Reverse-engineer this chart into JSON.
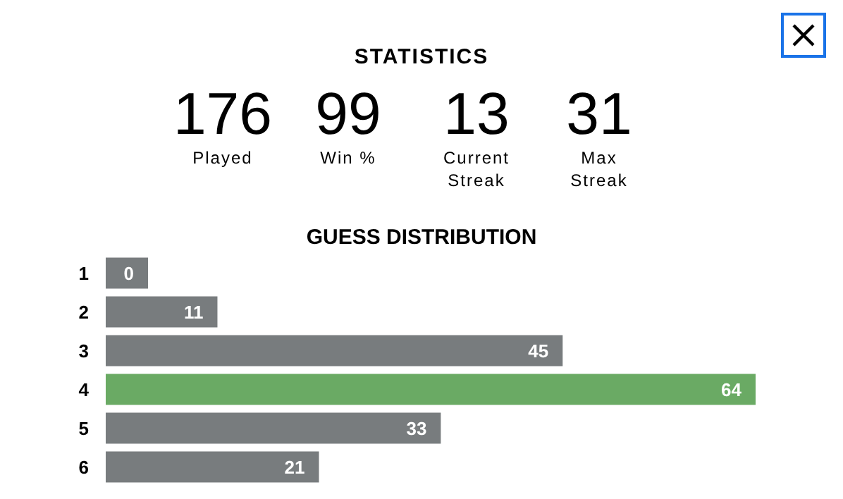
{
  "chart_data": [
    {
      "type": "other",
      "title": "STATISTICS",
      "categories": [
        "Played",
        "Win %",
        "Current\nStreak",
        "Max\nStreak"
      ],
      "values": [
        176,
        99,
        13,
        31
      ],
      "data_labels": true
    },
    {
      "type": "bar",
      "orientation": "horizontal",
      "title": "GUESS DISTRIBUTION",
      "categories": [
        "1",
        "2",
        "3",
        "4",
        "5",
        "6"
      ],
      "values": [
        0,
        11,
        45,
        64,
        33,
        21
      ],
      "colors": [
        "#787c7e",
        "#787c7e",
        "#787c7e",
        "#6aaa64",
        "#787c7e",
        "#787c7e"
      ],
      "data_labels": true,
      "tick_labels": "y"
    }
  ]
}
